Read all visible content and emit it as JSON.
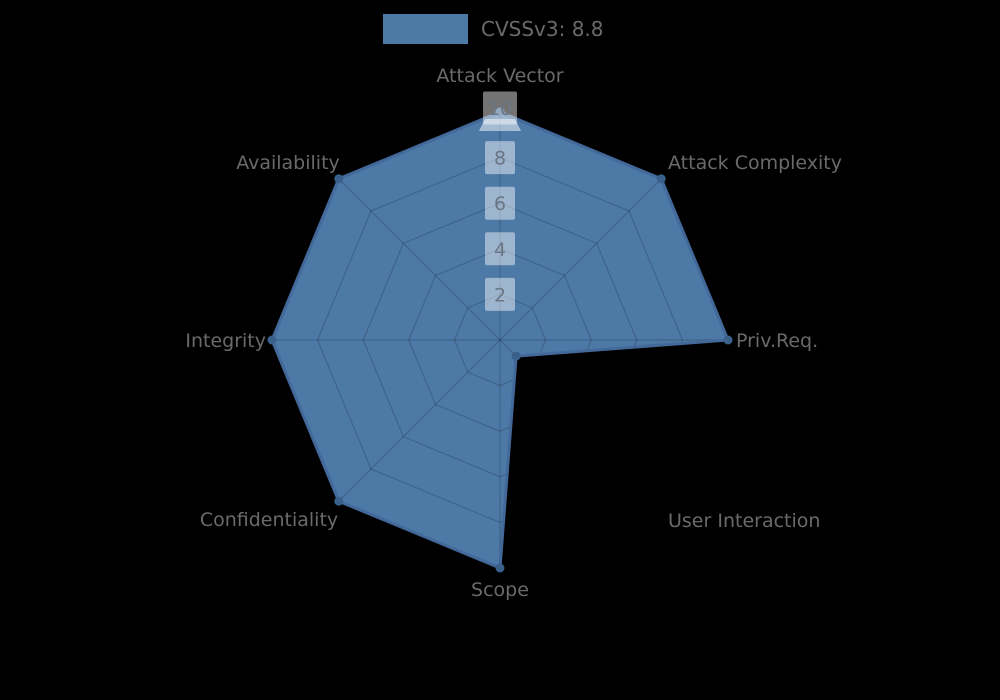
{
  "legend": {
    "label": "CVSSv3: 8.8",
    "swatch_color": "#4d79a7",
    "position": "top"
  },
  "chart_data": {
    "type": "radar",
    "title": "CVSSv3: 8.8",
    "categories": [
      "Attack Vector",
      "Attack Complexity",
      "Priv.Req.",
      "User Interaction",
      "Scope",
      "Confidentiality",
      "Integrity",
      "Availability"
    ],
    "series": [
      {
        "name": "CVSSv3: 8.8",
        "values": [
          10,
          10,
          10,
          1,
          10,
          10,
          10,
          10
        ]
      }
    ],
    "scale": {
      "min": 0,
      "max": 10,
      "tick_labels": [
        "2",
        "4",
        "6",
        "8",
        "10"
      ],
      "tick_values": [
        2,
        4,
        6,
        8,
        10
      ]
    },
    "grid": true,
    "legend_position": "top",
    "colors": {
      "background": "#000000",
      "fill": "#4d79a7",
      "border": "#42699a",
      "point": "#3a608c",
      "grid_line": "rgba(0,0,0,0.18)",
      "axis_label": "#6a6a6a",
      "tick_text": "#6b7685",
      "tick_backdrop": "rgba(255,255,255,0.45)",
      "tick_backdrop_overlay": "rgba(255,255,255,0.5)"
    }
  }
}
